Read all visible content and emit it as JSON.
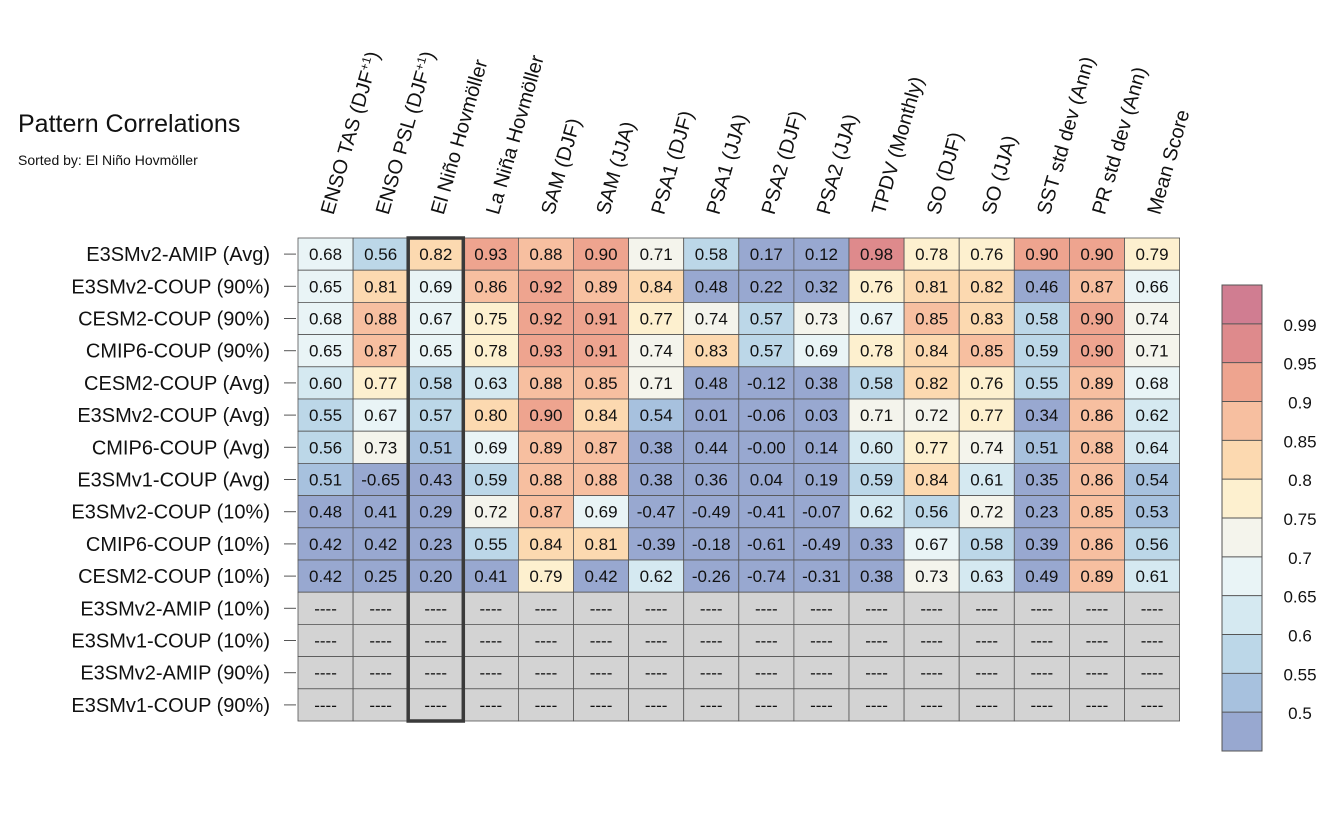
{
  "chart_data": {
    "type": "heatmap",
    "title": "Pattern Correlations",
    "subtitle": "Sorted by: El Niño Hovmöller",
    "columns": [
      {
        "label": "ENSO TAS (DJF",
        "sup": "+1",
        "suffix": ")"
      },
      {
        "label": "ENSO PSL (DJF",
        "sup": "+1",
        "suffix": ")"
      },
      {
        "label": "El Niño Hovmöller"
      },
      {
        "label": "La Niña Hovmöller"
      },
      {
        "label": "SAM (DJF)"
      },
      {
        "label": "SAM (JJA)"
      },
      {
        "label": "PSA1 (DJF)"
      },
      {
        "label": "PSA1 (JJA)"
      },
      {
        "label": "PSA2 (DJF)"
      },
      {
        "label": "PSA2 (JJA)"
      },
      {
        "label": "TPDV (Monthly)"
      },
      {
        "label": "SO (DJF)"
      },
      {
        "label": "SO (JJA)"
      },
      {
        "label": "SST std dev (Ann)"
      },
      {
        "label": "PR std dev (Ann)"
      },
      {
        "label": "Mean Score"
      }
    ],
    "rows": [
      "E3SMv2-AMIP (Avg)",
      "E3SMv2-COUP (90%)",
      "CESM2-COUP (90%)",
      "CMIP6-COUP (90%)",
      "CESM2-COUP (Avg)",
      "E3SMv2-COUP (Avg)",
      "CMIP6-COUP (Avg)",
      "E3SMv1-COUP (Avg)",
      "E3SMv2-COUP (10%)",
      "CMIP6-COUP (10%)",
      "CESM2-COUP (10%)",
      "E3SMv2-AMIP (10%)",
      "E3SMv1-COUP (10%)",
      "E3SMv2-AMIP (90%)",
      "E3SMv1-COUP (90%)"
    ],
    "values": [
      [
        "0.68",
        "0.56",
        "0.82",
        "0.93",
        "0.88",
        "0.90",
        "0.71",
        "0.58",
        "0.17",
        "0.12",
        "0.98",
        "0.78",
        "0.76",
        "0.90",
        "0.90",
        "0.79"
      ],
      [
        "0.65",
        "0.81",
        "0.69",
        "0.86",
        "0.92",
        "0.89",
        "0.84",
        "0.48",
        "0.22",
        "0.32",
        "0.76",
        "0.81",
        "0.82",
        "0.46",
        "0.87",
        "0.66"
      ],
      [
        "0.68",
        "0.88",
        "0.67",
        "0.75",
        "0.92",
        "0.91",
        "0.77",
        "0.74",
        "0.57",
        "0.73",
        "0.67",
        "0.85",
        "0.83",
        "0.58",
        "0.90",
        "0.74"
      ],
      [
        "0.65",
        "0.87",
        "0.65",
        "0.78",
        "0.93",
        "0.91",
        "0.74",
        "0.83",
        "0.57",
        "0.69",
        "0.78",
        "0.84",
        "0.85",
        "0.59",
        "0.90",
        "0.71"
      ],
      [
        "0.60",
        "0.77",
        "0.58",
        "0.63",
        "0.88",
        "0.85",
        "0.71",
        "0.48",
        "-0.12",
        "0.38",
        "0.58",
        "0.82",
        "0.76",
        "0.55",
        "0.89",
        "0.68"
      ],
      [
        "0.55",
        "0.67",
        "0.57",
        "0.80",
        "0.90",
        "0.84",
        "0.54",
        "0.01",
        "-0.06",
        "0.03",
        "0.71",
        "0.72",
        "0.77",
        "0.34",
        "0.86",
        "0.62"
      ],
      [
        "0.56",
        "0.73",
        "0.51",
        "0.69",
        "0.89",
        "0.87",
        "0.38",
        "0.44",
        "-0.00",
        "0.14",
        "0.60",
        "0.77",
        "0.74",
        "0.51",
        "0.88",
        "0.64"
      ],
      [
        "0.51",
        "-0.65",
        "0.43",
        "0.59",
        "0.88",
        "0.88",
        "0.38",
        "0.36",
        "0.04",
        "0.19",
        "0.59",
        "0.84",
        "0.61",
        "0.35",
        "0.86",
        "0.54"
      ],
      [
        "0.48",
        "0.41",
        "0.29",
        "0.72",
        "0.87",
        "0.69",
        "-0.47",
        "-0.49",
        "-0.41",
        "-0.07",
        "0.62",
        "0.56",
        "0.72",
        "0.23",
        "0.85",
        "0.53"
      ],
      [
        "0.42",
        "0.42",
        "0.23",
        "0.55",
        "0.84",
        "0.81",
        "-0.39",
        "-0.18",
        "-0.61",
        "-0.49",
        "0.33",
        "0.67",
        "0.58",
        "0.39",
        "0.86",
        "0.56"
      ],
      [
        "0.42",
        "0.25",
        "0.20",
        "0.41",
        "0.79",
        "0.42",
        "0.62",
        "-0.26",
        "-0.74",
        "-0.31",
        "0.38",
        "0.73",
        "0.63",
        "0.49",
        "0.89",
        "0.61"
      ],
      [
        "----",
        "----",
        "----",
        "----",
        "----",
        "----",
        "----",
        "----",
        "----",
        "----",
        "----",
        "----",
        "----",
        "----",
        "----",
        "----"
      ],
      [
        "----",
        "----",
        "----",
        "----",
        "----",
        "----",
        "----",
        "----",
        "----",
        "----",
        "----",
        "----",
        "----",
        "----",
        "----",
        "----"
      ],
      [
        "----",
        "----",
        "----",
        "----",
        "----",
        "----",
        "----",
        "----",
        "----",
        "----",
        "----",
        "----",
        "----",
        "----",
        "----",
        "----"
      ],
      [
        "----",
        "----",
        "----",
        "----",
        "----",
        "----",
        "----",
        "----",
        "----",
        "----",
        "----",
        "----",
        "----",
        "----",
        "----",
        "----"
      ]
    ],
    "highlight_column": 2,
    "missing_color": "#d3d3d3",
    "colorbar": {
      "boundaries": [
        0.5,
        0.55,
        0.6,
        0.65,
        0.7,
        0.75,
        0.8,
        0.85,
        0.9,
        0.95,
        0.99
      ],
      "tick_labels": [
        "0.5",
        "0.55",
        "0.6",
        "0.65",
        "0.7",
        "0.75",
        "0.8",
        "0.85",
        "0.9",
        "0.95",
        "0.99"
      ],
      "colors": [
        "#98a8d0",
        "#a7c1de",
        "#bcd7e8",
        "#d5e9f1",
        "#e9f4f6",
        "#f4f4ec",
        "#fdf0cf",
        "#fcd9b0",
        "#f7bfa0",
        "#eea48f",
        "#de8a8c",
        "#d07d91"
      ]
    }
  }
}
